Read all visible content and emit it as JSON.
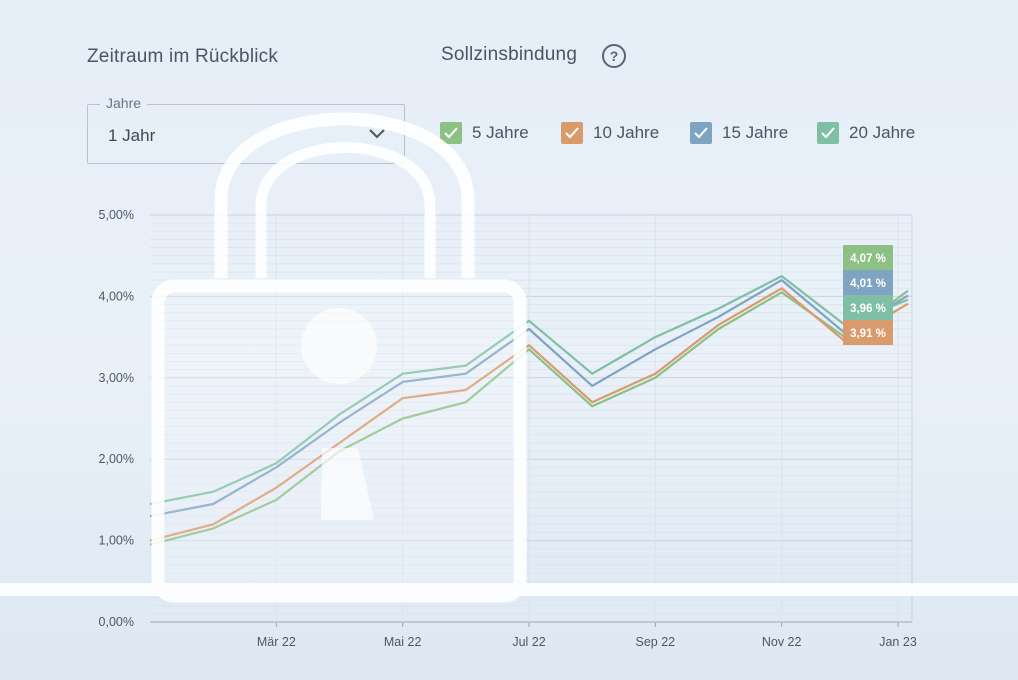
{
  "header": {
    "period_title": "Zeitraum im Rückblick",
    "fixation_title": "Sollzinsbindung",
    "help_icon": "?"
  },
  "period_select": {
    "legend": "Jahre",
    "value": "1 Jahr"
  },
  "legend": [
    {
      "label": "5 Jahre",
      "color": "#8cc084",
      "checked": true
    },
    {
      "label": "10 Jahre",
      "color": "#d99a6c",
      "checked": true
    },
    {
      "label": "15 Jahre",
      "color": "#7fa4c2",
      "checked": true
    },
    {
      "label": "20 Jahre",
      "color": "#7fbfa5",
      "checked": true
    }
  ],
  "chart_data": {
    "type": "line",
    "ylim": [
      0,
      5
    ],
    "y_ticks": [
      "0,00%",
      "1,00%",
      "2,00%",
      "3,00%",
      "4,00%",
      "5,00%"
    ],
    "x_tick_labels": [
      "Mär 22",
      "Mai 22",
      "Jul 22",
      "Sep 22",
      "Nov 22",
      "Jan 23"
    ],
    "grid": true,
    "x": [
      "Jan 22",
      "Feb 22",
      "Mär 22",
      "Apr 22",
      "Mai 22",
      "Jun 22",
      "Jul 22",
      "Aug 22",
      "Sep 22",
      "Okt 22",
      "Nov 22",
      "Dez 22",
      "Jan 23"
    ],
    "series": [
      {
        "name": "5 Jahre",
        "color": "#8cc084",
        "values": [
          0.95,
          1.15,
          1.5,
          2.1,
          2.5,
          2.7,
          3.35,
          2.65,
          3.0,
          3.6,
          4.05,
          3.5,
          4.07
        ]
      },
      {
        "name": "10 Jahre",
        "color": "#d99a6c",
        "values": [
          1.0,
          1.2,
          1.65,
          2.2,
          2.75,
          2.85,
          3.4,
          2.7,
          3.05,
          3.65,
          4.1,
          3.45,
          3.91
        ]
      },
      {
        "name": "15 Jahre",
        "color": "#7fa4c2",
        "values": [
          1.3,
          1.45,
          1.9,
          2.45,
          2.95,
          3.05,
          3.6,
          2.9,
          3.35,
          3.75,
          4.2,
          3.55,
          4.01
        ]
      },
      {
        "name": "20 Jahre",
        "color": "#7fbfa5",
        "values": [
          1.45,
          1.6,
          1.95,
          2.55,
          3.05,
          3.15,
          3.7,
          3.05,
          3.5,
          3.85,
          4.25,
          3.65,
          3.96
        ]
      }
    ],
    "end_labels": [
      {
        "text": "4,07 %",
        "color": "#8cc084"
      },
      {
        "text": "4,01 %",
        "color": "#7fa4c2"
      },
      {
        "text": "3,96 %",
        "color": "#7fbfa5"
      },
      {
        "text": "3,91 %",
        "color": "#d99a6c"
      }
    ]
  }
}
